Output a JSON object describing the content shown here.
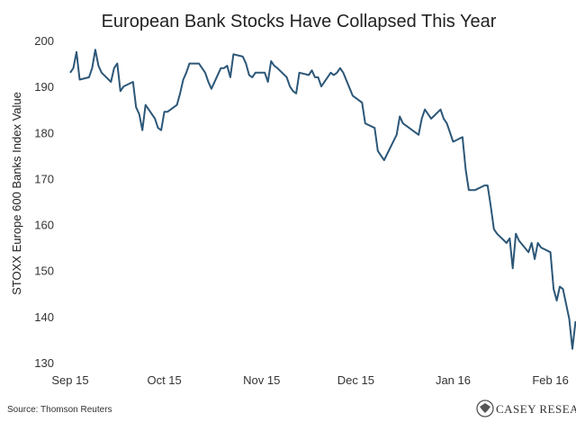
{
  "chart_data": {
    "type": "line",
    "title": "European Bank Stocks Have Collapsed This Year",
    "ylabel": "STOXX Europe 600 Banks Index Value",
    "xlabel": "",
    "ylim": [
      130,
      200
    ],
    "yticks": [
      130,
      140,
      150,
      160,
      170,
      180,
      190,
      200
    ],
    "xlim": [
      "2015-09-15",
      "2016-02-22"
    ],
    "xticks": [
      {
        "label": "Sep 15",
        "date": "2015-09-15"
      },
      {
        "label": "Oct 15",
        "date": "2015-10-15"
      },
      {
        "label": "Nov 15",
        "date": "2015-11-15"
      },
      {
        "label": "Dec 15",
        "date": "2015-12-15"
      },
      {
        "label": "Jan 16",
        "date": "2016-01-15"
      },
      {
        "label": "Feb 16",
        "date": "2016-02-15"
      }
    ],
    "grid": false,
    "line_color": "#2c5778",
    "series": [
      {
        "points": [
          [
            "2015-09-15",
            193
          ],
          [
            "2015-09-16",
            194
          ],
          [
            "2015-09-17",
            197.5
          ],
          [
            "2015-09-18",
            191.5
          ],
          [
            "2015-09-21",
            192
          ],
          [
            "2015-09-22",
            194
          ],
          [
            "2015-09-23",
            198
          ],
          [
            "2015-09-24",
            194.5
          ],
          [
            "2015-09-25",
            193
          ],
          [
            "2015-09-28",
            191
          ],
          [
            "2015-09-29",
            194
          ],
          [
            "2015-09-30",
            195
          ],
          [
            "2015-10-01",
            189
          ],
          [
            "2015-10-02",
            190
          ],
          [
            "2015-10-05",
            191
          ],
          [
            "2015-10-06",
            185.5
          ],
          [
            "2015-10-07",
            184
          ],
          [
            "2015-10-08",
            180.5
          ],
          [
            "2015-10-09",
            186
          ],
          [
            "2015-10-12",
            183
          ],
          [
            "2015-10-13",
            181
          ],
          [
            "2015-10-14",
            180.5
          ],
          [
            "2015-10-15",
            184.5
          ],
          [
            "2015-10-16",
            184.5
          ],
          [
            "2015-10-19",
            186
          ],
          [
            "2015-10-20",
            188.5
          ],
          [
            "2015-10-21",
            191.5
          ],
          [
            "2015-10-22",
            193
          ],
          [
            "2015-10-23",
            195
          ],
          [
            "2015-10-26",
            195
          ],
          [
            "2015-10-27",
            194
          ],
          [
            "2015-10-28",
            193
          ],
          [
            "2015-10-29",
            191
          ],
          [
            "2015-10-30",
            189.5
          ],
          [
            "2015-11-02",
            194
          ],
          [
            "2015-11-03",
            194
          ],
          [
            "2015-11-04",
            194.5
          ],
          [
            "2015-11-05",
            192
          ],
          [
            "2015-11-06",
            197
          ],
          [
            "2015-11-09",
            196.5
          ],
          [
            "2015-11-10",
            195
          ],
          [
            "2015-11-11",
            192.5
          ],
          [
            "2015-11-12",
            192
          ],
          [
            "2015-11-13",
            193
          ],
          [
            "2015-11-16",
            193
          ],
          [
            "2015-11-17",
            191
          ],
          [
            "2015-11-18",
            195.5
          ],
          [
            "2015-11-19",
            194.5
          ],
          [
            "2015-11-20",
            194
          ],
          [
            "2015-11-23",
            192
          ],
          [
            "2015-11-24",
            190
          ],
          [
            "2015-11-25",
            189
          ],
          [
            "2015-11-26",
            188.5
          ],
          [
            "2015-11-27",
            193
          ],
          [
            "2015-11-30",
            192.5
          ],
          [
            "2015-12-01",
            193.5
          ],
          [
            "2015-12-02",
            192
          ],
          [
            "2015-12-03",
            192
          ],
          [
            "2015-12-04",
            190
          ],
          [
            "2015-12-07",
            193
          ],
          [
            "2015-12-08",
            192.5
          ],
          [
            "2015-12-09",
            193
          ],
          [
            "2015-12-10",
            194
          ],
          [
            "2015-12-11",
            193
          ],
          [
            "2015-12-14",
            188
          ],
          [
            "2015-12-15",
            187.5
          ],
          [
            "2015-12-16",
            187
          ],
          [
            "2015-12-17",
            186.5
          ],
          [
            "2015-12-18",
            182
          ],
          [
            "2015-12-21",
            181
          ],
          [
            "2015-12-22",
            176
          ],
          [
            "2015-12-23",
            175
          ],
          [
            "2015-12-24",
            174
          ],
          [
            "2015-12-28",
            179.5
          ],
          [
            "2015-12-29",
            183.5
          ],
          [
            "2015-12-30",
            182
          ],
          [
            "2016-01-04",
            179.5
          ],
          [
            "2016-01-05",
            183
          ],
          [
            "2016-01-06",
            185
          ],
          [
            "2016-01-07",
            184
          ],
          [
            "2016-01-08",
            183
          ],
          [
            "2016-01-11",
            185
          ],
          [
            "2016-01-12",
            183
          ],
          [
            "2016-01-13",
            182
          ],
          [
            "2016-01-14",
            180
          ],
          [
            "2016-01-15",
            178
          ],
          [
            "2016-01-18",
            179
          ],
          [
            "2016-01-19",
            172
          ],
          [
            "2016-01-20",
            167.5
          ],
          [
            "2016-01-21",
            167.5
          ],
          [
            "2016-01-22",
            167.5
          ],
          [
            "2016-01-25",
            168.5
          ],
          [
            "2016-01-26",
            168.5
          ],
          [
            "2016-01-27",
            164
          ],
          [
            "2016-01-28",
            159
          ],
          [
            "2016-01-29",
            158
          ],
          [
            "2016-02-01",
            156
          ],
          [
            "2016-02-02",
            157
          ],
          [
            "2016-02-03",
            150.5
          ],
          [
            "2016-02-04",
            158
          ],
          [
            "2016-02-05",
            156.5
          ],
          [
            "2016-02-08",
            154
          ],
          [
            "2016-02-09",
            156
          ],
          [
            "2016-02-10",
            152.5
          ],
          [
            "2016-02-11",
            156
          ],
          [
            "2016-02-12",
            155
          ],
          [
            "2016-02-15",
            154
          ],
          [
            "2016-02-16",
            146
          ],
          [
            "2016-02-17",
            143.5
          ],
          [
            "2016-02-18",
            146.5
          ],
          [
            "2016-02-19",
            146
          ],
          [
            "2016-02-21",
            139.5
          ],
          [
            "2016-02-22",
            133
          ],
          [
            "2016-02-23",
            139
          ]
        ]
      }
    ]
  },
  "source": "Source: Thomson Reuters",
  "logo": {
    "icon": "casey-eagle-seal-icon",
    "text": "CASEY RESEARCH"
  }
}
